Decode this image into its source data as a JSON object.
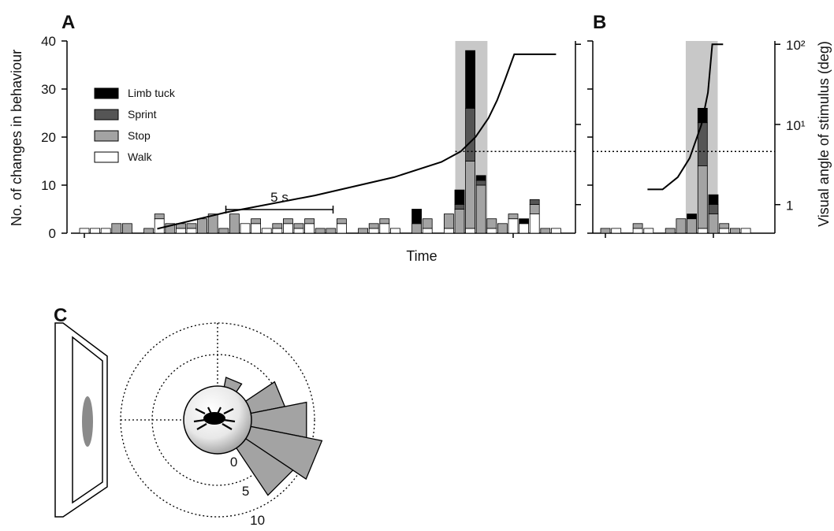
{
  "chart_data": [
    {
      "type": "bar",
      "stacked": true,
      "panel_label": "A",
      "ylabel": "No. of changes in behaviour",
      "xlabel": "Time",
      "x": [
        0,
        0.5,
        1,
        1.5,
        2,
        2.5,
        3,
        3.5,
        4,
        4.5,
        5,
        5.5,
        6,
        6.5,
        7,
        7.5,
        8,
        8.5,
        9,
        9.5,
        10,
        10.5,
        11,
        11.5,
        12,
        12.5,
        13,
        13.5,
        14,
        14.5,
        15,
        15.5,
        16,
        16.5,
        17,
        17.5,
        18,
        18.5,
        19,
        19.5,
        20,
        20.5,
        21,
        21.5,
        22
      ],
      "xticks": [
        0,
        20
      ],
      "ylim": [
        0,
        40
      ],
      "yticks": [
        0,
        10,
        20,
        30,
        40
      ],
      "series": [
        {
          "name": "Walk",
          "color": "#ffffff",
          "values": [
            1,
            1,
            1,
            0,
            0,
            0,
            0,
            3,
            0,
            1,
            1,
            0,
            0,
            0,
            0,
            2,
            2,
            1,
            1,
            2,
            1,
            2,
            0,
            0,
            2,
            0,
            0,
            1,
            2,
            1,
            0,
            0,
            1,
            0,
            1,
            0,
            1,
            0,
            1,
            0,
            3,
            2,
            4,
            0,
            1
          ]
        },
        {
          "name": "Stop",
          "color": "#a3a3a3",
          "values": [
            0,
            0,
            0,
            2,
            2,
            0,
            1,
            1,
            2,
            1,
            1,
            3,
            4,
            1,
            4,
            0,
            1,
            0,
            1,
            1,
            1,
            1,
            1,
            1,
            1,
            0,
            1,
            1,
            1,
            0,
            0,
            2,
            2,
            0,
            3,
            5,
            14,
            10,
            2,
            2,
            1,
            0,
            2,
            1,
            0
          ]
        },
        {
          "name": "Sprint",
          "color": "#555555",
          "values": [
            0,
            0,
            0,
            0,
            0,
            0,
            0,
            0,
            0,
            0,
            0,
            0,
            0,
            0,
            0,
            0,
            0,
            0,
            0,
            0,
            0,
            0,
            0,
            0,
            0,
            0,
            0,
            0,
            0,
            0,
            0,
            0,
            0,
            0,
            0,
            1,
            11,
            1,
            0,
            0,
            0,
            0,
            1,
            0,
            0
          ]
        },
        {
          "name": "Limb tuck",
          "color": "#000000",
          "values": [
            0,
            0,
            0,
            0,
            0,
            0,
            0,
            0,
            0,
            0,
            0,
            0,
            0,
            0,
            0,
            0,
            0,
            0,
            0,
            0,
            0,
            0,
            0,
            0,
            0,
            0,
            0,
            0,
            0,
            0,
            0,
            3,
            0,
            0,
            0,
            3,
            12,
            1,
            0,
            0,
            0,
            1,
            0,
            0,
            0
          ]
        },
        {
          "axis": "y2",
          "color": "#000000",
          "x": [
            3.4,
            6.6,
            10.75,
            14.45,
            16.65,
            17.55,
            18.25,
            18.85,
            19.25,
            19.6,
            20.05,
            22
          ],
          "values": [
            0.5,
            0.8,
            1.3,
            2.2,
            3.4,
            4.6,
            7,
            12,
            20,
            35,
            75,
            75
          ]
        }
      ],
      "y2lim": [
        0.44,
        110
      ],
      "y2ticks": [
        1,
        10,
        100
      ],
      "y2log": true,
      "threshold": 4.6,
      "highlight": [
        17.3,
        18.8
      ],
      "scale_bar": {
        "start": 6.6,
        "length": 5,
        "label": "5 s"
      },
      "legend": "upper left"
    },
    {
      "type": "bar",
      "stacked": true,
      "panel_label": "B",
      "y2label": "Visual angle of stimulus (deg)",
      "x": [
        0,
        0.5,
        1,
        1.5,
        2,
        2.5,
        3,
        3.5,
        4,
        4.5,
        5,
        5.5,
        6,
        6.5
      ],
      "xticks": [
        0,
        5
      ],
      "ylim": [
        0,
        40
      ],
      "yticks": [
        0,
        10,
        20,
        30,
        40
      ],
      "series": [
        {
          "color": "#ffffff",
          "values": [
            0,
            1,
            0,
            1,
            1,
            0,
            0,
            0,
            0,
            1,
            0,
            1,
            0,
            1
          ]
        },
        {
          "color": "#a3a3a3",
          "values": [
            1,
            0,
            0,
            1,
            0,
            0,
            1,
            3,
            3,
            13,
            4,
            1,
            1,
            0
          ]
        },
        {
          "color": "#555555",
          "values": [
            0,
            0,
            0,
            0,
            0,
            0,
            0,
            0,
            0,
            9,
            2,
            0,
            0,
            0
          ]
        },
        {
          "color": "#000000",
          "values": [
            0,
            0,
            0,
            0,
            0,
            0,
            0,
            0,
            1,
            3,
            2,
            0,
            0,
            0
          ]
        },
        {
          "axis": "y2",
          "color": "#000000",
          "x": [
            1.95,
            2.65,
            3.35,
            3.9,
            4.45,
            4.75,
            4.95,
            5.45
          ],
          "values": [
            1.55,
            1.55,
            2.2,
            3.8,
            10,
            25,
            100,
            100
          ]
        }
      ],
      "y2lim": [
        0.44,
        110
      ],
      "y2log": true,
      "y2ticks": [
        {
          "value": 1,
          "label": "1"
        },
        {
          "value": 10,
          "label": "10¹"
        },
        {
          "value": 100,
          "label": "10²"
        }
      ],
      "threshold": 4.6,
      "highlight": [
        3.72,
        5.2
      ]
    },
    {
      "type": "polar_bar",
      "panel_label": "C",
      "angles": [
        -67.5,
        -22.5,
        0,
        22.5,
        45
      ],
      "bin_width": 22.5,
      "values": [
        1.5,
        5.5,
        9,
        11.5,
        9
      ],
      "color": "#a3a3a3",
      "rlim": [
        0,
        10
      ],
      "rticks": [
        0,
        5,
        10
      ]
    }
  ]
}
